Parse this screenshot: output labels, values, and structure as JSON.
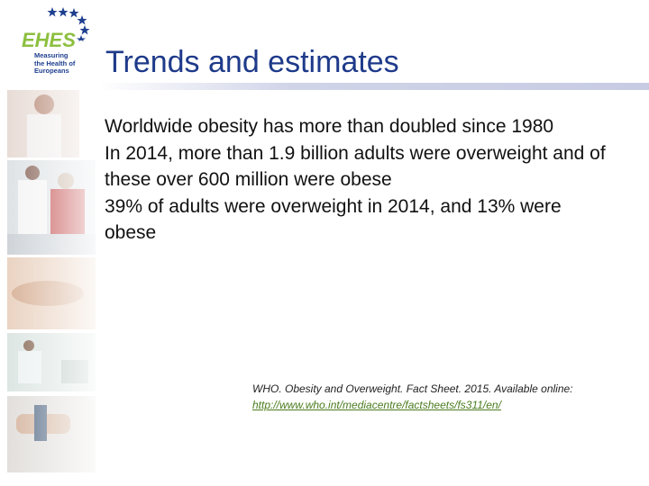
{
  "logo": {
    "name": "EHES",
    "tagline": [
      "Measuring",
      "the Health of",
      "Europeans"
    ]
  },
  "title": "Trends and estimates",
  "bullets": [
    "Worldwide obesity has more than doubled since 1980",
    "In 2014, more than 1.9 billion adults were overweight and of these over 600 million were obese",
    "39% of adults were overweight in 2014, and 13% were obese"
  ],
  "reference": {
    "text": "WHO. Obesity and Overweight. Fact Sheet. 2015. Available online: ",
    "link": "http://www.who.int/mediacentre/factsheets/fs311/en/"
  },
  "colors": {
    "title": "#1e3a8a",
    "logo_green": "#8cbf3f",
    "logo_blue": "#1f3f8f",
    "link": "#4a7b1e"
  }
}
